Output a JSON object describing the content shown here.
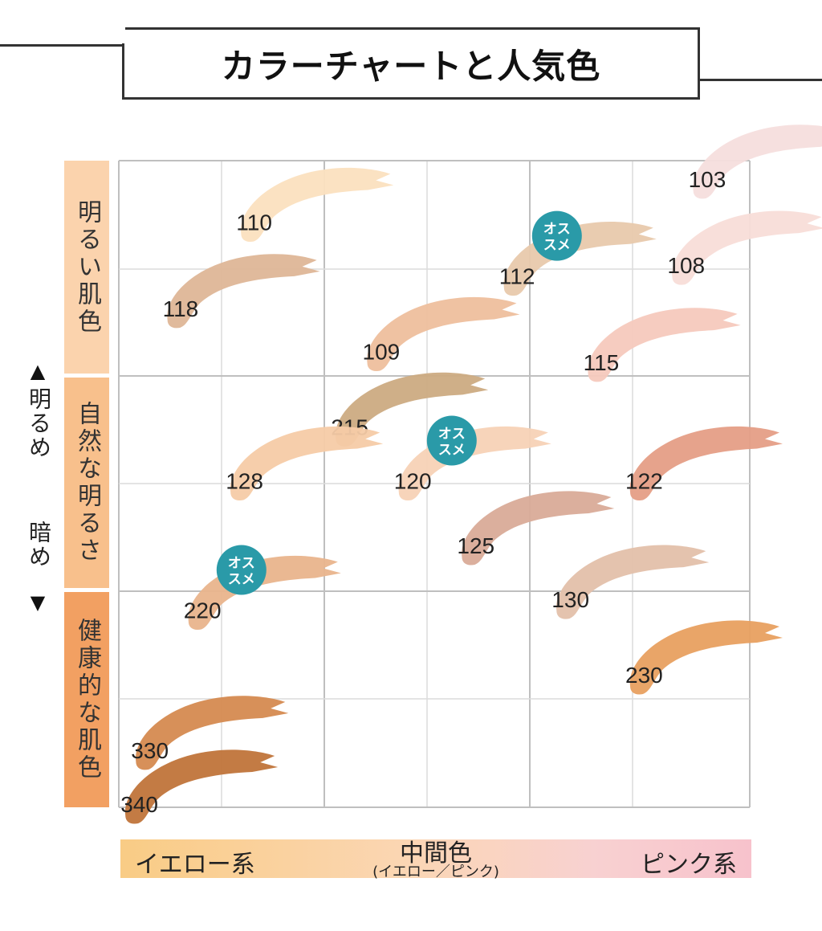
{
  "header": {
    "title": "カラーチャートと人気色"
  },
  "y_axis": {
    "up_arrow_icon": "triangle-up-icon",
    "down_arrow_icon": "triangle-down-icon",
    "up_label": "明るめ",
    "down_label": "暗め",
    "categories": [
      {
        "label": "明るい肌色",
        "color": "#fbd3ad"
      },
      {
        "label": "自然な明るさ",
        "color": "#f8c08c"
      },
      {
        "label": "健康的な肌色",
        "color": "#f2a062"
      }
    ]
  },
  "x_axis": {
    "left_label": "イエロー系",
    "center_label": "中間色",
    "center_sub_label": "(イエロー／ピンク)",
    "right_label": "ピンク系"
  },
  "badge": {
    "line1": "オス",
    "line2": "スメ",
    "color": "#2a9aa8"
  },
  "chart_data": {
    "type": "scatter",
    "title": "カラーチャートと人気色",
    "xlabel": "イエロー系 ← 中間色 → ピンク系",
    "ylabel": "明るめ ↑ ↓ 暗め",
    "xlim": [
      0,
      6
    ],
    "ylim": [
      0,
      6
    ],
    "grid": true,
    "points": [
      {
        "label": "103",
        "x": 5.6,
        "y": 5.8,
        "color": "#f6dedd",
        "recommended": false
      },
      {
        "label": "110",
        "x": 1.3,
        "y": 5.4,
        "color": "#fbe0bf",
        "recommended": false
      },
      {
        "label": "108",
        "x": 5.4,
        "y": 5.0,
        "color": "#f8ddd8",
        "recommended": false
      },
      {
        "label": "112",
        "x": 3.8,
        "y": 4.9,
        "color": "#e8c9ac",
        "recommended": true
      },
      {
        "label": "118",
        "x": 0.6,
        "y": 4.6,
        "color": "#deb697",
        "recommended": false
      },
      {
        "label": "109",
        "x": 2.5,
        "y": 4.2,
        "color": "#eebf9d",
        "recommended": false
      },
      {
        "label": "115",
        "x": 4.6,
        "y": 4.1,
        "color": "#f5c9bd",
        "recommended": false
      },
      {
        "label": "215",
        "x": 2.2,
        "y": 3.5,
        "color": "#ccab82",
        "recommended": false
      },
      {
        "label": "120",
        "x": 2.8,
        "y": 3.0,
        "color": "#f7d2b6",
        "recommended": true
      },
      {
        "label": "128",
        "x": 1.2,
        "y": 3.0,
        "color": "#f6cba6",
        "recommended": false
      },
      {
        "label": "122",
        "x": 5.0,
        "y": 3.0,
        "color": "#e59e86",
        "recommended": false
      },
      {
        "label": "125",
        "x": 3.4,
        "y": 2.4,
        "color": "#d9ab98",
        "recommended": false
      },
      {
        "label": "130",
        "x": 4.3,
        "y": 1.9,
        "color": "#e3c0aa",
        "recommended": false
      },
      {
        "label": "220",
        "x": 0.8,
        "y": 1.8,
        "color": "#e9b48c",
        "recommended": true
      },
      {
        "label": "230",
        "x": 5.0,
        "y": 1.2,
        "color": "#e8a060",
        "recommended": false
      },
      {
        "label": "330",
        "x": 0.3,
        "y": 0.5,
        "color": "#d58a50",
        "recommended": false
      },
      {
        "label": "340",
        "x": 0.2,
        "y": 0.0,
        "color": "#c0743a",
        "recommended": false
      }
    ]
  }
}
